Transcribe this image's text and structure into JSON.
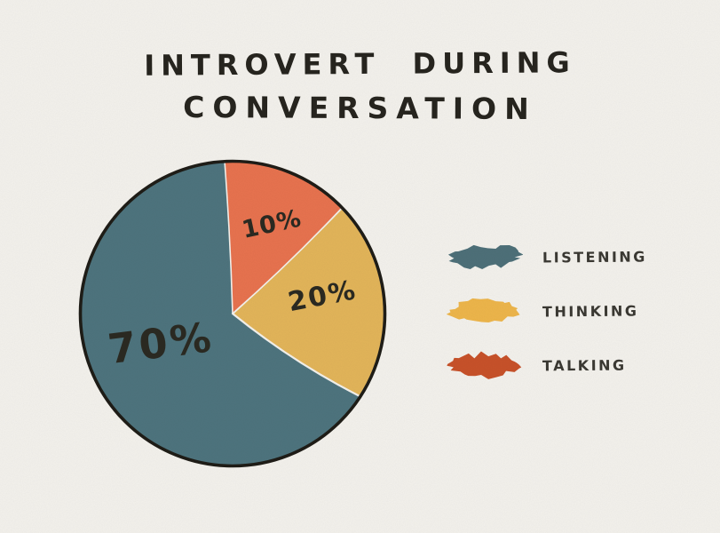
{
  "page": {
    "background_color": "#f4f2ed",
    "ink_color": "#27251f"
  },
  "title": {
    "line1": "INTROVERT DURING",
    "line2": "CONVERSATION"
  },
  "chart_data": {
    "type": "pie",
    "title": "Introvert During Conversation",
    "categories": [
      "Listening",
      "Thinking",
      "Talking"
    ],
    "values": [
      70,
      20,
      10
    ],
    "unit": "%",
    "slice_labels": [
      "70%",
      "20%",
      "10%"
    ],
    "slice_colors": [
      "#4e747e",
      "#e3b55a",
      "#e8734f"
    ],
    "outline_color": "#1f1d17",
    "legend_position": "right",
    "style": "hand-drawn",
    "layout_hints": {
      "clockwise": true,
      "start_at": "12-o-clock",
      "order_from_top_clockwise": [
        "Talking",
        "Thinking",
        "Listening"
      ],
      "drawn_boundaries_deg": [
        -3,
        46,
        123
      ]
    }
  },
  "legend": {
    "items": [
      {
        "label": "LISTENING",
        "swatch_color": "#4e7079"
      },
      {
        "label": "THINKING",
        "swatch_color": "#eeb64b"
      },
      {
        "label": "TALKING",
        "swatch_color": "#c8522a"
      }
    ]
  }
}
